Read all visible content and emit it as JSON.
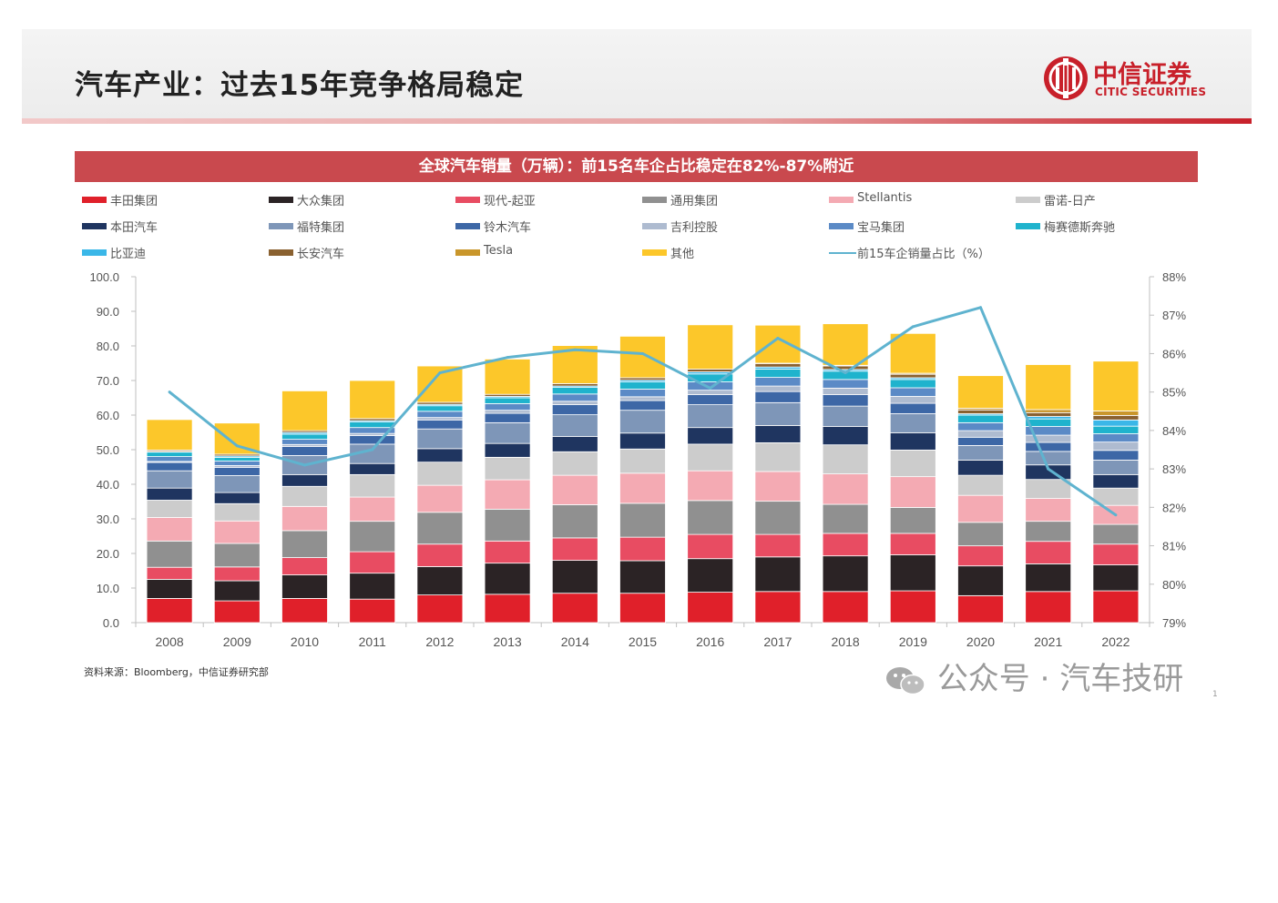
{
  "slide": {
    "title": "汽车产业：过去15年竞争格局稳定",
    "logo_cn": "中信证券",
    "logo_en": "CITIC SECURITIES",
    "banner": "全球汽车销量（万辆）：前15名车企占比稳定在82%-87%附近",
    "source": "资料来源：Bloomberg，中信证券研究部",
    "watermark": "公众号 · 汽车技研",
    "page_number": "1"
  },
  "colors": {
    "accent_red": "#c8202a",
    "banner": "#c9494e",
    "share_line": "#5fb3cf"
  },
  "chart_data": {
    "type": "bar",
    "stacked": true,
    "categories": [
      "2008",
      "2009",
      "2010",
      "2011",
      "2012",
      "2013",
      "2014",
      "2015",
      "2016",
      "2017",
      "2018",
      "2019",
      "2020",
      "2021",
      "2022"
    ],
    "y_ticks": [
      "0.0",
      "10.0",
      "20.0",
      "30.0",
      "40.0",
      "50.0",
      "60.0",
      "70.0",
      "80.0",
      "90.0",
      "100.0"
    ],
    "ylim": [
      0,
      100
    ],
    "y2_ticks": [
      "79%",
      "80%",
      "81%",
      "82%",
      "83%",
      "84%",
      "85%",
      "86%",
      "87%",
      "88%"
    ],
    "y2lim": [
      79,
      88
    ],
    "grid": false,
    "legend_position": "top",
    "series": [
      {
        "name": "丰田集团",
        "color": "#e0202a",
        "values": [
          7.0,
          6.3,
          7.0,
          6.8,
          8.0,
          8.2,
          8.5,
          8.5,
          8.8,
          9.0,
          9.0,
          9.2,
          7.8,
          9.0,
          9.2
        ]
      },
      {
        "name": "大众集团",
        "color": "#2b2325",
        "values": [
          5.5,
          5.8,
          6.8,
          7.5,
          8.2,
          9.0,
          9.5,
          9.4,
          9.7,
          10.0,
          10.3,
          10.4,
          8.6,
          8.0,
          7.5
        ]
      },
      {
        "name": "现代-起亚",
        "color": "#e84c62",
        "values": [
          3.5,
          4.0,
          5.0,
          6.2,
          6.5,
          6.4,
          6.5,
          6.8,
          7.0,
          6.5,
          6.5,
          6.2,
          5.8,
          6.5,
          6.0
        ]
      },
      {
        "name": "通用集团",
        "color": "#909090",
        "values": [
          7.6,
          6.8,
          7.8,
          8.8,
          9.2,
          9.2,
          9.6,
          9.8,
          9.8,
          9.6,
          8.4,
          7.5,
          6.8,
          5.8,
          5.7
        ]
      },
      {
        "name": "Stellantis",
        "color": "#f4aab3",
        "values": [
          6.8,
          6.5,
          7.0,
          7.0,
          7.8,
          8.5,
          8.5,
          8.7,
          8.6,
          8.6,
          8.8,
          8.9,
          7.8,
          6.6,
          5.5
        ]
      },
      {
        "name": "雷诺-日产",
        "color": "#cccccc",
        "values": [
          5.0,
          5.0,
          5.8,
          6.5,
          6.7,
          6.5,
          6.8,
          7.0,
          7.7,
          8.3,
          8.4,
          7.7,
          5.8,
          5.5,
          5.0
        ]
      },
      {
        "name": "本田汽车",
        "color": "#1f3560",
        "values": [
          3.5,
          3.2,
          3.4,
          3.2,
          3.9,
          4.0,
          4.4,
          4.6,
          4.8,
          5.0,
          5.3,
          5.0,
          4.4,
          4.2,
          3.9
        ]
      },
      {
        "name": "福特集团",
        "color": "#7e96b8",
        "values": [
          5.0,
          4.9,
          5.5,
          5.6,
          5.7,
          6.0,
          6.3,
          6.6,
          6.6,
          6.6,
          5.9,
          5.5,
          4.2,
          3.9,
          4.2
        ]
      },
      {
        "name": "铃木汽车",
        "color": "#3d67a6",
        "values": [
          2.4,
          2.4,
          2.6,
          2.5,
          2.6,
          2.7,
          2.9,
          2.8,
          2.9,
          3.2,
          3.3,
          3.0,
          2.4,
          2.6,
          2.8
        ]
      },
      {
        "name": "吉利控股",
        "color": "#aebbd0",
        "values": [
          0.3,
          0.5,
          0.6,
          0.6,
          0.7,
          0.9,
          1.0,
          1.1,
          1.3,
          1.6,
          1.9,
          2.0,
          1.9,
          2.1,
          2.4
        ]
      },
      {
        "name": "宝马集团",
        "color": "#5b8ac6",
        "values": [
          1.4,
          1.3,
          1.5,
          1.7,
          1.8,
          1.9,
          2.1,
          2.2,
          2.4,
          2.5,
          2.5,
          2.5,
          2.3,
          2.5,
          2.4
        ]
      },
      {
        "name": "梅赛德斯奔驰",
        "color": "#1fb3cd",
        "values": [
          1.3,
          1.1,
          1.5,
          1.6,
          1.6,
          1.7,
          1.9,
          2.1,
          2.3,
          2.4,
          2.4,
          2.4,
          2.2,
          2.2,
          2.2
        ]
      },
      {
        "name": "比亚迪",
        "color": "#3ab7e8",
        "values": [
          0.2,
          0.4,
          0.5,
          0.4,
          0.4,
          0.4,
          0.4,
          0.5,
          0.6,
          0.6,
          0.5,
          0.5,
          0.4,
          0.7,
          1.8
        ]
      },
      {
        "name": "长安汽车",
        "color": "#8a6130",
        "values": [
          0.4,
          0.5,
          0.5,
          0.6,
          0.6,
          0.6,
          0.7,
          0.7,
          0.8,
          1.0,
          1.0,
          1.0,
          1.1,
          1.1,
          1.3
        ]
      },
      {
        "name": "Tesla",
        "color": "#c9962b",
        "values": [
          0,
          0,
          0,
          0,
          0,
          0,
          0,
          0,
          0,
          0.1,
          0.2,
          0.3,
          0.5,
          0.9,
          1.3
        ]
      },
      {
        "name": "其他",
        "color": "#fcc72a",
        "values": [
          8.8,
          9.0,
          11.5,
          11.0,
          10.5,
          10.2,
          11.0,
          12.0,
          12.8,
          11.0,
          12.0,
          11.5,
          9.4,
          13.0,
          14.4
        ]
      }
    ],
    "line": {
      "name": "前15车企销量占比（%）",
      "color": "#5fb3cf",
      "values": [
        85.0,
        83.6,
        83.1,
        83.5,
        85.5,
        85.9,
        86.1,
        86.0,
        85.1,
        86.4,
        85.5,
        86.7,
        87.2,
        83.0,
        81.8
      ]
    },
    "ticks_left": [
      0,
      10,
      20,
      30,
      40,
      50,
      60,
      70,
      80,
      90,
      100
    ],
    "ticks_right": [
      79,
      80,
      81,
      82,
      83,
      84,
      85,
      86,
      87,
      88
    ]
  }
}
